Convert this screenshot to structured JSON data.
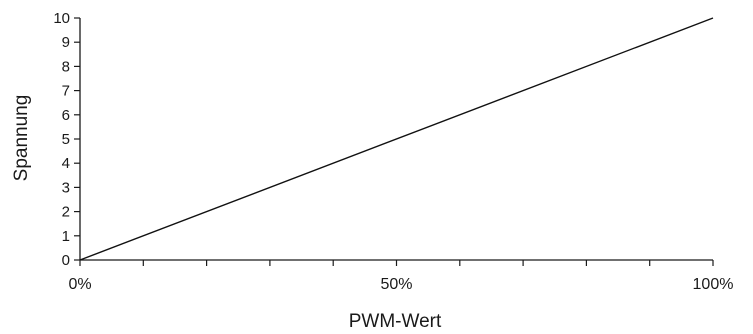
{
  "chart_data": {
    "type": "line",
    "xlabel": "PWM-Wert",
    "ylabel": "Spannung",
    "xlim": [
      0,
      100
    ],
    "ylim": [
      0,
      10
    ],
    "x_tick_values": [
      0,
      10,
      20,
      30,
      40,
      50,
      60,
      70,
      80,
      90,
      100
    ],
    "x_tick_labels": [
      {
        "value": 0,
        "label": "0%"
      },
      {
        "value": 50,
        "label": "50%"
      },
      {
        "value": 100,
        "label": "100%"
      }
    ],
    "y_ticks": [
      "0",
      "1",
      "2",
      "3",
      "4",
      "5",
      "6",
      "7",
      "8",
      "9",
      "10"
    ],
    "grid": false,
    "series": [
      {
        "x": [
          0,
          100
        ],
        "y": [
          0,
          10
        ],
        "color": "#111111"
      }
    ]
  }
}
